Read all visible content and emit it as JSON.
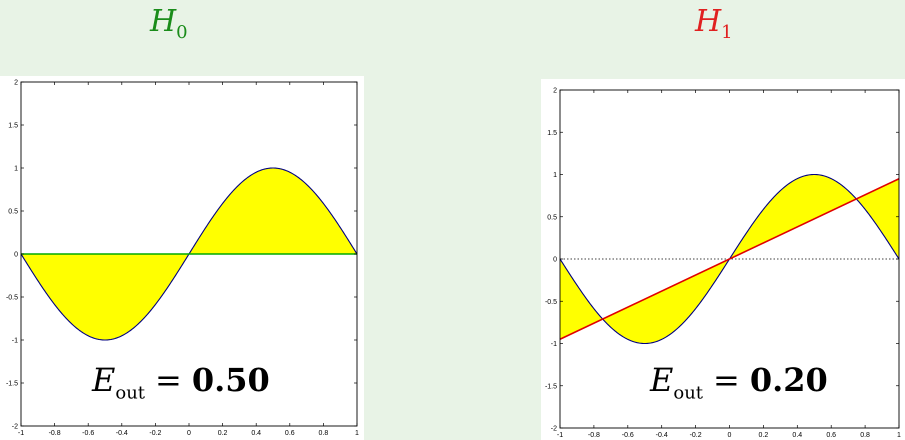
{
  "titles": {
    "left": {
      "symbol": "H",
      "subscript": "0"
    },
    "right": {
      "symbol": "H",
      "subscript": "1"
    }
  },
  "colors": {
    "background": "#e8f3e6",
    "left_title": "#1a8c1a",
    "right_title": "#e02020",
    "target_curve": "#000080",
    "fill": "#ffff00",
    "h0_line": "#00aa00",
    "h1_line": "#e00000"
  },
  "chart_data": [
    {
      "type": "line",
      "title": "",
      "xlim": [
        -1,
        1
      ],
      "ylim": [
        -2,
        2
      ],
      "xticks": [
        -1,
        -0.8,
        -0.6,
        -0.4,
        -0.2,
        0,
        0.2,
        0.4,
        0.6,
        0.8,
        1
      ],
      "yticks": [
        -2,
        -1.5,
        -1,
        -0.5,
        0,
        0.5,
        1,
        1.5,
        2
      ],
      "xtick_labels": [
        "-1",
        "-0.8",
        "-0.6",
        "-0.4",
        "-0.2",
        "0",
        "0.2",
        "0.4",
        "0.6",
        "0.8",
        "1"
      ],
      "ytick_labels": [
        "-2",
        "-1.5",
        "-1",
        "-0.5",
        "0",
        "0.5",
        "1",
        "1.5",
        "2"
      ],
      "target": {
        "function": "sin(pi x)",
        "amplitude": 1,
        "frequency": 3.141592653589793
      },
      "hypothesis": {
        "slope": 0,
        "intercept": 0
      },
      "zero_reference_line": false,
      "annotation": {
        "symbol": "E",
        "subscript": "out",
        "equals": "=",
        "value": "0.50"
      }
    },
    {
      "type": "line",
      "title": "",
      "xlim": [
        -1,
        1
      ],
      "ylim": [
        -2,
        2
      ],
      "xticks": [
        -1,
        -0.8,
        -0.6,
        -0.4,
        -0.2,
        0,
        0.2,
        0.4,
        0.6,
        0.8,
        1
      ],
      "yticks": [
        -2,
        -1.5,
        -1,
        -0.5,
        0,
        0.5,
        1,
        1.5,
        2
      ],
      "xtick_labels": [
        "-1",
        "-0.8",
        "-0.6",
        "-0.4",
        "-0.2",
        "0",
        "0.2",
        "0.4",
        "0.6",
        "0.8",
        "1"
      ],
      "ytick_labels": [
        "-2",
        "-1.5",
        "-1",
        "-0.5",
        "0",
        "0.5",
        "1",
        "1.5",
        "2"
      ],
      "target": {
        "function": "sin(pi x)",
        "amplitude": 1,
        "frequency": 3.141592653589793
      },
      "hypothesis": {
        "slope": 0.95,
        "intercept": 0
      },
      "zero_reference_line": true,
      "annotation": {
        "symbol": "E",
        "subscript": "out",
        "equals": "=",
        "value": "0.20"
      }
    }
  ]
}
